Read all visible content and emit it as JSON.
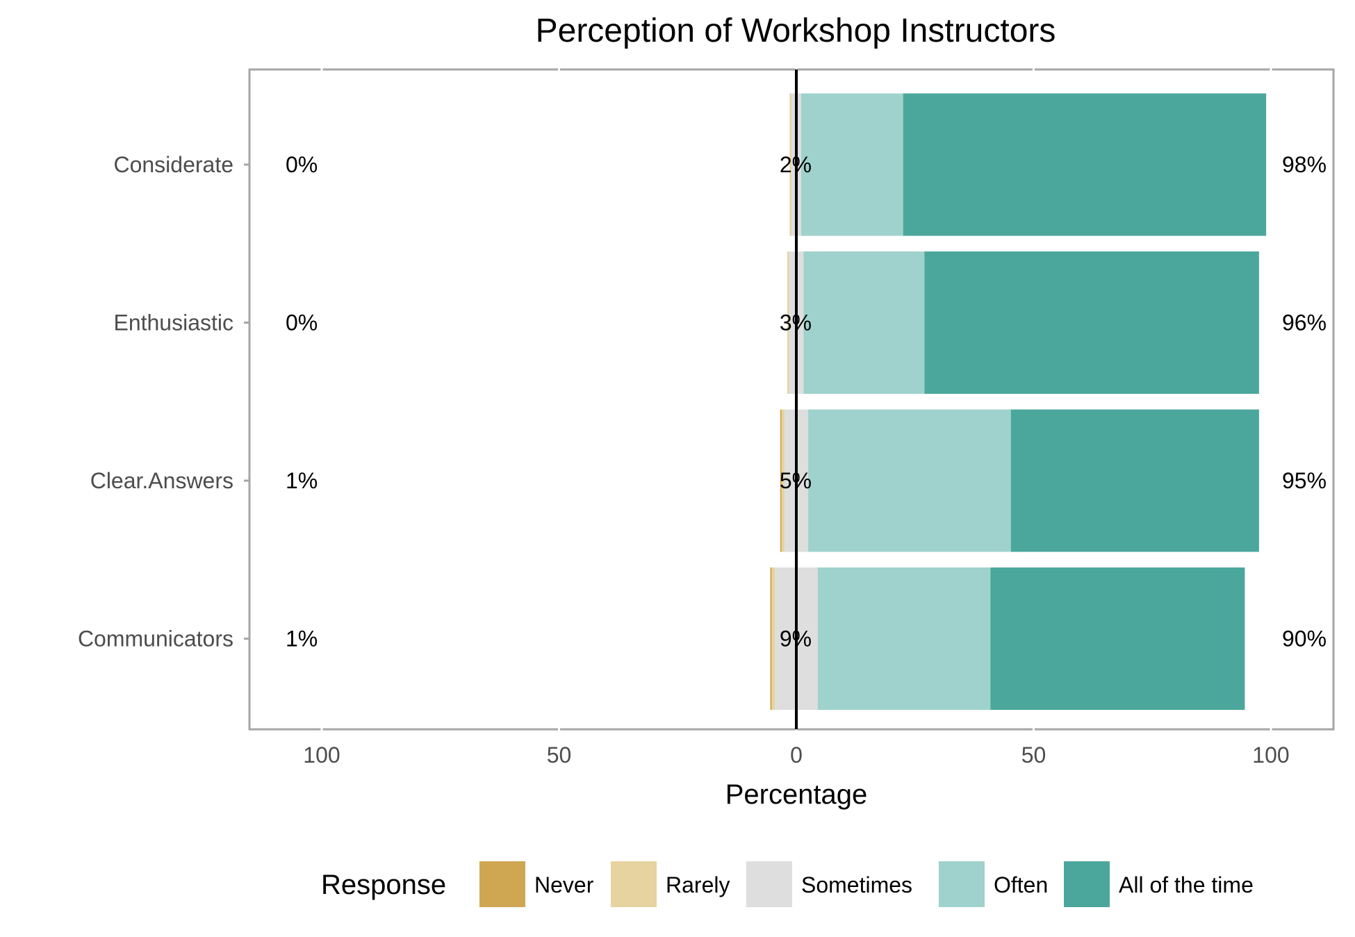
{
  "chart_data": {
    "type": "bar",
    "title": "Perception of Workshop Instructors",
    "xlabel": "Percentage",
    "ylabel": "",
    "categories": [
      "Considerate",
      "Enthusiastic",
      "Clear.Answers",
      "Communicators"
    ],
    "xlim": [
      -100,
      100
    ],
    "x_ticks": [
      -100,
      -50,
      0,
      50,
      100
    ],
    "x_tick_labels": [
      "100",
      "50",
      "0",
      "50",
      "100"
    ],
    "grid": true,
    "legend": {
      "title": "Response",
      "placement": "bottom"
    },
    "series": [
      {
        "name": "Never",
        "color": "#CFA651",
        "values": [
          0.0,
          0.0,
          0.3,
          0.3
        ]
      },
      {
        "name": "Rarely",
        "color": "#E6D3A0",
        "values": [
          0.4,
          0.4,
          0.6,
          0.7
        ]
      },
      {
        "name": "Sometimes",
        "color": "#DEDEDE",
        "values": [
          2.0,
          3.0,
          5.0,
          9.0
        ]
      },
      {
        "name": "Often",
        "color": "#9FD2CC",
        "values": [
          21.5,
          25.5,
          42.7,
          36.4
        ]
      },
      {
        "name": "All of the time",
        "color": "#4BA79C",
        "values": [
          76.5,
          70.5,
          52.3,
          53.6
        ]
      }
    ],
    "annotations": {
      "left": [
        "0%",
        "0%",
        "1%",
        "1%"
      ],
      "middle": [
        "2%",
        "3%",
        "5%",
        "9%"
      ],
      "right": [
        "98%",
        "96%",
        "95%",
        "90%"
      ]
    },
    "colors": {
      "panel_border": "#A6A6A6",
      "grid": "#FFFFFF",
      "zero_line": "#000000"
    }
  }
}
